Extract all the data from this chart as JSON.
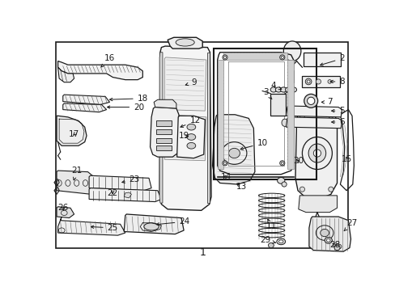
{
  "bg": "#ffffff",
  "lc": "#1a1a1a",
  "fig_w": 4.89,
  "fig_h": 3.6,
  "dpi": 100,
  "fs": 7.5,
  "fs_title": 9
}
